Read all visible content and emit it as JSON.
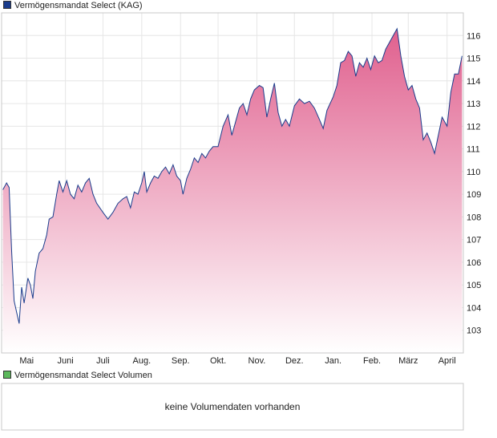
{
  "legend": {
    "price_label": "Vermögensmandat Select (KAG)",
    "price_color": "#1a3c8c",
    "volume_label": "Vermögensmandat Select Volumen",
    "volume_color": "#5cb85c"
  },
  "volume_panel": {
    "message": "keine Volumendaten vorhanden"
  },
  "chart_data": {
    "type": "area",
    "title": "Vermögensmandat Select (KAG)",
    "xlabel": "",
    "ylabel": "",
    "ylim": [
      102,
      117
    ],
    "y_ticks": [
      103,
      104,
      105,
      106,
      107,
      108,
      109,
      110,
      111,
      112,
      113,
      114,
      115,
      116
    ],
    "x_tick_labels": [
      "Mai",
      "Juni",
      "Juli",
      "Aug.",
      "Sep.",
      "Okt.",
      "Nov.",
      "Dez.",
      "Jan.",
      "Feb.",
      "März",
      "April"
    ],
    "x_tick_dates": [
      "2023-05-01",
      "2023-06-01",
      "2023-07-01",
      "2023-08-01",
      "2023-09-01",
      "2023-10-01",
      "2023-11-01",
      "2023-12-01",
      "2024-01-01",
      "2024-02-01",
      "2024-03-01",
      "2024-04-01"
    ],
    "grid": true,
    "legend_position": "top-left",
    "line_color": "#1a3c8c",
    "fill_color_top": "#e0608e",
    "fill_color_bottom": "#ffffff",
    "series": [
      {
        "name": "Vermögensmandat Select (KAG)",
        "points": [
          [
            "2023-04-12",
            109.2
          ],
          [
            "2023-04-15",
            109.5
          ],
          [
            "2023-04-17",
            109.3
          ],
          [
            "2023-04-19",
            106.5
          ],
          [
            "2023-04-21",
            104.3
          ],
          [
            "2023-04-23",
            103.8
          ],
          [
            "2023-04-25",
            103.3
          ],
          [
            "2023-04-27",
            104.9
          ],
          [
            "2023-04-29",
            104.2
          ],
          [
            "2023-05-02",
            105.3
          ],
          [
            "2023-05-04",
            105.0
          ],
          [
            "2023-05-06",
            104.4
          ],
          [
            "2023-05-08",
            105.6
          ],
          [
            "2023-05-11",
            106.4
          ],
          [
            "2023-05-14",
            106.6
          ],
          [
            "2023-05-17",
            107.2
          ],
          [
            "2023-05-19",
            107.9
          ],
          [
            "2023-05-22",
            108.0
          ],
          [
            "2023-05-25",
            109.0
          ],
          [
            "2023-05-27",
            109.6
          ],
          [
            "2023-05-30",
            109.1
          ],
          [
            "2023-06-02",
            109.6
          ],
          [
            "2023-06-05",
            109.0
          ],
          [
            "2023-06-08",
            108.8
          ],
          [
            "2023-06-11",
            109.4
          ],
          [
            "2023-06-14",
            109.1
          ],
          [
            "2023-06-17",
            109.5
          ],
          [
            "2023-06-20",
            109.7
          ],
          [
            "2023-06-23",
            109.0
          ],
          [
            "2023-06-26",
            108.6
          ],
          [
            "2023-07-01",
            108.2
          ],
          [
            "2023-07-05",
            107.9
          ],
          [
            "2023-07-09",
            108.2
          ],
          [
            "2023-07-13",
            108.6
          ],
          [
            "2023-07-17",
            108.8
          ],
          [
            "2023-07-20",
            108.9
          ],
          [
            "2023-07-23",
            108.4
          ],
          [
            "2023-07-26",
            109.1
          ],
          [
            "2023-07-29",
            109.0
          ],
          [
            "2023-08-01",
            109.5
          ],
          [
            "2023-08-03",
            110.0
          ],
          [
            "2023-08-05",
            109.1
          ],
          [
            "2023-08-08",
            109.5
          ],
          [
            "2023-08-11",
            109.8
          ],
          [
            "2023-08-14",
            109.7
          ],
          [
            "2023-08-17",
            110.0
          ],
          [
            "2023-08-20",
            110.2
          ],
          [
            "2023-08-23",
            109.9
          ],
          [
            "2023-08-26",
            110.3
          ],
          [
            "2023-08-29",
            109.8
          ],
          [
            "2023-09-01",
            109.6
          ],
          [
            "2023-09-03",
            109.0
          ],
          [
            "2023-09-06",
            109.7
          ],
          [
            "2023-09-09",
            110.1
          ],
          [
            "2023-09-12",
            110.6
          ],
          [
            "2023-09-15",
            110.4
          ],
          [
            "2023-09-18",
            110.8
          ],
          [
            "2023-09-21",
            110.6
          ],
          [
            "2023-09-24",
            110.9
          ],
          [
            "2023-09-27",
            111.1
          ],
          [
            "2023-10-01",
            111.1
          ],
          [
            "2023-10-05",
            112.0
          ],
          [
            "2023-10-09",
            112.5
          ],
          [
            "2023-10-12",
            111.6
          ],
          [
            "2023-10-15",
            112.2
          ],
          [
            "2023-10-18",
            112.8
          ],
          [
            "2023-10-21",
            113.0
          ],
          [
            "2023-10-24",
            112.5
          ],
          [
            "2023-10-27",
            113.2
          ],
          [
            "2023-10-30",
            113.6
          ],
          [
            "2023-11-03",
            113.8
          ],
          [
            "2023-11-06",
            113.7
          ],
          [
            "2023-11-09",
            112.4
          ],
          [
            "2023-11-12",
            113.2
          ],
          [
            "2023-11-15",
            113.9
          ],
          [
            "2023-11-18",
            112.6
          ],
          [
            "2023-11-21",
            112.0
          ],
          [
            "2023-11-24",
            112.3
          ],
          [
            "2023-11-27",
            112.0
          ],
          [
            "2023-12-01",
            112.9
          ],
          [
            "2023-12-05",
            113.2
          ],
          [
            "2023-12-09",
            113.0
          ],
          [
            "2023-12-13",
            113.1
          ],
          [
            "2023-12-17",
            112.8
          ],
          [
            "2023-12-21",
            112.3
          ],
          [
            "2023-12-24",
            111.9
          ],
          [
            "2023-12-27",
            112.7
          ],
          [
            "2024-01-01",
            113.3
          ],
          [
            "2024-01-04",
            113.8
          ],
          [
            "2024-01-07",
            114.8
          ],
          [
            "2024-01-10",
            114.9
          ],
          [
            "2024-01-13",
            115.3
          ],
          [
            "2024-01-16",
            115.1
          ],
          [
            "2024-01-19",
            114.2
          ],
          [
            "2024-01-22",
            114.8
          ],
          [
            "2024-01-25",
            114.6
          ],
          [
            "2024-01-28",
            115.0
          ],
          [
            "2024-01-31",
            114.5
          ],
          [
            "2024-02-03",
            115.1
          ],
          [
            "2024-02-06",
            114.8
          ],
          [
            "2024-02-09",
            114.9
          ],
          [
            "2024-02-12",
            115.4
          ],
          [
            "2024-02-15",
            115.7
          ],
          [
            "2024-02-18",
            116.0
          ],
          [
            "2024-02-21",
            116.3
          ],
          [
            "2024-02-24",
            115.1
          ],
          [
            "2024-02-27",
            114.2
          ],
          [
            "2024-03-01",
            113.6
          ],
          [
            "2024-03-04",
            113.8
          ],
          [
            "2024-03-07",
            113.2
          ],
          [
            "2024-03-10",
            112.8
          ],
          [
            "2024-03-13",
            111.4
          ],
          [
            "2024-03-16",
            111.7
          ],
          [
            "2024-03-19",
            111.3
          ],
          [
            "2024-03-22",
            110.8
          ],
          [
            "2024-03-25",
            111.6
          ],
          [
            "2024-03-28",
            112.4
          ],
          [
            "2024-04-01",
            112.0
          ],
          [
            "2024-04-04",
            113.5
          ],
          [
            "2024-04-07",
            114.3
          ],
          [
            "2024-04-10",
            114.3
          ],
          [
            "2024-04-13",
            115.1
          ]
        ]
      }
    ]
  }
}
